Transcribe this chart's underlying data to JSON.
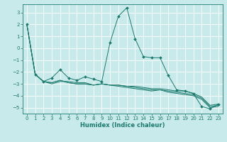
{
  "title": "",
  "xlabel": "Humidex (Indice chaleur)",
  "bg_color": "#c8eaea",
  "line_color": "#1a7a6e",
  "grid_color": "#ffffff",
  "xlim": [
    -0.5,
    23.5
  ],
  "ylim": [
    -5.5,
    3.7
  ],
  "xticks": [
    0,
    1,
    2,
    3,
    4,
    5,
    6,
    7,
    8,
    9,
    10,
    11,
    12,
    13,
    14,
    15,
    16,
    17,
    18,
    19,
    20,
    21,
    22,
    23
  ],
  "yticks": [
    -5,
    -4,
    -3,
    -2,
    -1,
    0,
    1,
    2,
    3
  ],
  "line1_x": [
    0,
    1,
    2,
    3,
    4,
    5,
    6,
    7,
    8,
    9,
    10,
    11,
    12,
    13,
    14,
    15,
    16,
    17,
    18,
    19,
    20,
    21,
    22,
    23
  ],
  "line1_y": [
    2.0,
    -2.2,
    -2.8,
    -2.5,
    -1.8,
    -2.5,
    -2.7,
    -2.4,
    -2.6,
    -2.8,
    0.5,
    2.7,
    3.4,
    0.8,
    -0.7,
    -0.8,
    -0.8,
    -2.3,
    -3.5,
    -3.6,
    -3.8,
    -4.9,
    -5.1,
    -4.7
  ],
  "line2_x": [
    0,
    1,
    2,
    3,
    4,
    5,
    6,
    7,
    8,
    9,
    10,
    11,
    12,
    13,
    14,
    15,
    16,
    17,
    18,
    19,
    20,
    21,
    22,
    23
  ],
  "line2_y": [
    2.0,
    -2.2,
    -2.8,
    -3.0,
    -2.8,
    -2.8,
    -2.9,
    -2.9,
    -3.1,
    -3.0,
    -3.1,
    -3.1,
    -3.2,
    -3.2,
    -3.3,
    -3.4,
    -3.4,
    -3.5,
    -3.6,
    -3.6,
    -3.8,
    -4.1,
    -4.8,
    -4.7
  ],
  "line3_x": [
    0,
    1,
    2,
    3,
    4,
    5,
    6,
    7,
    8,
    9,
    10,
    11,
    12,
    13,
    14,
    15,
    16,
    17,
    18,
    19,
    20,
    21,
    22,
    23
  ],
  "line3_y": [
    2.0,
    -2.2,
    -2.8,
    -2.9,
    -2.7,
    -2.9,
    -3.0,
    -3.0,
    -3.1,
    -3.0,
    -3.1,
    -3.1,
    -3.2,
    -3.3,
    -3.4,
    -3.5,
    -3.5,
    -3.6,
    -3.7,
    -3.8,
    -3.9,
    -4.2,
    -4.9,
    -4.8
  ],
  "line4_x": [
    0,
    1,
    2,
    3,
    4,
    5,
    6,
    7,
    8,
    9,
    10,
    11,
    12,
    13,
    14,
    15,
    16,
    17,
    18,
    19,
    20,
    21,
    22,
    23
  ],
  "line4_y": [
    2.0,
    -2.2,
    -2.8,
    -2.9,
    -2.7,
    -2.9,
    -3.0,
    -3.0,
    -3.1,
    -3.0,
    -3.1,
    -3.2,
    -3.3,
    -3.4,
    -3.5,
    -3.6,
    -3.5,
    -3.7,
    -3.8,
    -3.9,
    -4.0,
    -4.3,
    -5.0,
    -4.9
  ],
  "tick_fontsize": 5.0,
  "xlabel_fontsize": 6.0
}
